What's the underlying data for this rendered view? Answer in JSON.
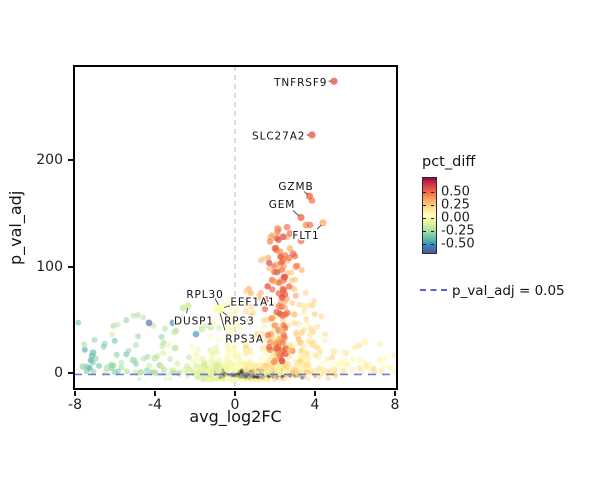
{
  "chart_data": {
    "type": "scatter",
    "title": "",
    "xlabel": "avg_log2FC",
    "ylabel": "p_val_adj",
    "xlim": [
      -8.1,
      8.15
    ],
    "ylim": [
      -16,
      289
    ],
    "grid": false,
    "background": "#ffffff",
    "x_ticks": [
      {
        "v": -8,
        "label": "-8"
      },
      {
        "v": -4,
        "label": "-4"
      },
      {
        "v": 0,
        "label": "0"
      },
      {
        "v": 4,
        "label": "4"
      },
      {
        "v": 8,
        "label": "8"
      }
    ],
    "y_ticks": [
      {
        "v": 0,
        "label": "0"
      },
      {
        "v": 100,
        "label": "100"
      },
      {
        "v": 200,
        "label": "200"
      }
    ],
    "color_variable": "pct_diff",
    "colormap": {
      "name": "spectral-reversed",
      "range": [
        -0.66,
        0.78
      ],
      "stops": [
        "#5e4fa2",
        "#3288bd",
        "#66c2a5",
        "#abdda4",
        "#e6f598",
        "#ffffbf",
        "#fee08b",
        "#fdae61",
        "#f46d43",
        "#d53e4f",
        "#9e0142"
      ]
    },
    "reference_lines": {
      "vertical": {
        "x": 0,
        "style": "dashed",
        "color": "#c3c3c3"
      },
      "horizontal": {
        "y": 0.05,
        "label": "p_val_adj = 0.05",
        "style": "dashed",
        "color": "#5c61d6"
      }
    },
    "labeled_points": [
      {
        "name": "TNFRSF9",
        "x": 4.95,
        "y": 274,
        "pct": 0.55,
        "label_x": 4.62,
        "label_y": 273,
        "anchor": "end",
        "leader": [
          4.68,
          274,
          4.8,
          274
        ]
      },
      {
        "name": "SLC27A2",
        "x": 3.85,
        "y": 223.5,
        "pct": 0.55,
        "label_x": 3.52,
        "label_y": 222.5,
        "anchor": "end",
        "leader": [
          3.58,
          223.5,
          3.7,
          223.5
        ]
      },
      {
        "name": "GZMB",
        "x": 3.72,
        "y": 166,
        "pct": 0.5,
        "label_x": 3.05,
        "label_y": 175,
        "anchor": "middle",
        "leader": [
          3.45,
          170.5,
          3.65,
          167.5
        ]
      },
      {
        "name": "GEM",
        "x": 3.3,
        "y": 146,
        "pct": 0.5,
        "label_x": 2.35,
        "label_y": 158,
        "anchor": "middle",
        "leader": [
          2.9,
          152.5,
          3.2,
          147.5
        ]
      },
      {
        "name": "FLT1",
        "x": 4.4,
        "y": 141,
        "pct": 0.33,
        "label_x": 3.55,
        "label_y": 129,
        "anchor": "middle",
        "leader": [
          4.1,
          135,
          4.32,
          139
        ]
      },
      {
        "name": "RPL30",
        "x": -0.8,
        "y": 62,
        "pct": 0.05,
        "label_x": -1.5,
        "label_y": 73.5,
        "anchor": "middle",
        "leader": [
          -1.0,
          70,
          -0.83,
          64
        ]
      },
      {
        "name": "EEF1A1",
        "x": -0.62,
        "y": 61,
        "pct": 0.06,
        "label_x": 0.9,
        "label_y": 66.5,
        "anchor": "middle",
        "leader": [
          0.02,
          64.5,
          -0.55,
          61.5
        ]
      },
      {
        "name": "DUSP1",
        "x": -2.35,
        "y": 63,
        "pct": -0.13,
        "label_x": -2.05,
        "label_y": 49,
        "anchor": "middle",
        "leader": [
          -2.42,
          56,
          -2.37,
          61
        ]
      },
      {
        "name": "RPS3",
        "x": -0.75,
        "y": 60,
        "pct": 0.03,
        "label_x": 0.22,
        "label_y": 49,
        "anchor": "middle",
        "leader": [
          -0.35,
          53.5,
          -0.7,
          58.5
        ]
      },
      {
        "name": "RPS3A",
        "x": -0.78,
        "y": 58.5,
        "pct": 0.02,
        "label_x": 0.48,
        "label_y": 32,
        "anchor": "middle",
        "leader": [
          -0.5,
          40,
          -0.75,
          56
        ]
      }
    ],
    "notable_points": [
      [
        -4.3,
        47,
        -0.6
      ],
      [
        -3.1,
        47,
        -0.5
      ],
      [
        -1.95,
        36.5,
        -0.48
      ],
      [
        -2.95,
        39.5,
        -0.2
      ],
      [
        -3.0,
        23.5,
        -0.22
      ],
      [
        -7.1,
        19,
        -0.38
      ],
      [
        -7.15,
        16,
        -0.36
      ],
      [
        -5.1,
        12,
        -0.25
      ],
      [
        -2.6,
        61,
        -0.18
      ],
      [
        -1.65,
        41,
        -0.15
      ],
      [
        -7.6,
        6,
        -0.3
      ],
      [
        -6.4,
        5,
        -0.22
      ],
      [
        -4.0,
        14,
        -0.2
      ],
      [
        7.25,
        12,
        0.1
      ],
      [
        6.5,
        29,
        0.12
      ],
      [
        6.25,
        12,
        0.08
      ],
      [
        2.75,
        21,
        0.3
      ],
      [
        4.95,
        20,
        0.18
      ],
      [
        5.6,
        8,
        0.12
      ],
      [
        7.5,
        14,
        0.06
      ],
      [
        5.4,
        12,
        0.08
      ],
      [
        -0.85,
        62.5,
        0.04
      ],
      [
        -0.6,
        60.5,
        0.06
      ],
      [
        -0.95,
        59,
        0.03
      ],
      [
        2.6,
        137,
        0.5
      ],
      [
        2.75,
        131,
        0.52
      ],
      [
        2.4,
        128,
        0.6
      ],
      [
        3.85,
        162,
        0.5
      ],
      [
        3.3,
        124,
        0.55
      ],
      [
        2.9,
        112,
        0.55
      ],
      [
        3.05,
        100,
        0.5
      ],
      [
        2.5,
        90,
        0.58
      ],
      [
        3.55,
        139,
        0.45
      ],
      [
        3.75,
        139,
        0.5
      ]
    ],
    "clusters": [
      {
        "name": "central-cloud",
        "n": 850,
        "x": {
          "dist": "normal",
          "mu": 0.25,
          "sigma": 1.05,
          "min": -3.2,
          "max": 3.6
        },
        "y": {
          "dist": "normal",
          "mu": 0.5,
          "sigma": 4.5,
          "min": -6.5,
          "max": 26
        },
        "pct": {
          "base": 0.02,
          "from_x": 0.085,
          "noise": 0.05,
          "min": -0.5,
          "max": 0.5
        },
        "r": 2.4,
        "alpha": 0.45
      },
      {
        "name": "dense-core",
        "n": 450,
        "x": {
          "dist": "normal",
          "mu": 1.2,
          "sigma": 1.0,
          "min": -1.0,
          "max": 4.0
        },
        "y": {
          "dist": "normal",
          "mu": -0.5,
          "sigma": 1.8,
          "min": -5,
          "max": 3
        },
        "color": "#4a4538",
        "r": 1.6,
        "alpha": 0.3
      },
      {
        "name": "center-plume",
        "n": 120,
        "x": {
          "dist": "normal",
          "mu": -0.12,
          "sigma": 0.22,
          "min": -0.6,
          "max": 0.45
        },
        "y": {
          "dist": "pow",
          "base": 2,
          "range": 66,
          "exp": 1.7
        },
        "pct": {
          "base": 0.05,
          "noise": 0.03,
          "min": -0.05,
          "max": 0.12
        },
        "r": 2.4,
        "alpha": 0.5
      },
      {
        "name": "left-scatter",
        "n": 120,
        "x": {
          "dist": "pow",
          "base": -0.8,
          "range": -7.1,
          "exp": 1.25
        },
        "y": {
          "dist": "pow",
          "base": 0.5,
          "range": 55,
          "exp": 2.4
        },
        "pct": {
          "base": 0,
          "from_x": 0.05,
          "noise": 0.06,
          "min": -0.52,
          "max": 0.08
        },
        "r": 3,
        "alpha": 0.55
      },
      {
        "name": "right-fan",
        "n": 260,
        "x": {
          "dist": "normal",
          "mu": 2.5,
          "sigma": 1.15,
          "min": 0.55,
          "max": 6.2
        },
        "fan": {
          "peak": 148,
          "cx": 2.2,
          "slope": 42,
          "ymin": 3,
          "yexp": 2.1
        },
        "pct": {
          "base": 0.13,
          "from_y": 0.0021,
          "noise": 0.055,
          "min": -0.02,
          "max": 0.52
        },
        "r": 3,
        "alpha": 0.55
      },
      {
        "name": "red-streak",
        "n": 80,
        "x": {
          "dist": "normal",
          "mu": 2.2,
          "sigma": 0.3,
          "min": 1.5,
          "max": 3.0
        },
        "y": {
          "dist": "pow",
          "base": 10,
          "range": 128,
          "exp": 1.25
        },
        "pct": {
          "base": 0.5,
          "noise": 0.07,
          "min": 0.25,
          "max": 0.65
        },
        "r": 3.2,
        "alpha": 0.7
      },
      {
        "name": "right-sparse",
        "n": 45,
        "x": {
          "dist": "pow",
          "base": 3.2,
          "range": 4.9,
          "exp": 1.1
        },
        "y": {
          "dist": "pow",
          "base": 1,
          "range": 30,
          "exp": 2.2
        },
        "pct": {
          "base": 0.14,
          "noise": 0.07,
          "min": 0,
          "max": 0.35
        },
        "r": 3,
        "alpha": 0.5
      },
      {
        "name": "below-line",
        "n": 60,
        "x": {
          "dist": "uniform",
          "base": -5.5,
          "range": 11
        },
        "y": {
          "dist": "uniform",
          "base": -6,
          "range": 7
        },
        "pct": {
          "base": 0.01,
          "from_x": 0.05,
          "noise": 0.05,
          "min": -0.4,
          "max": 0.4
        },
        "r": 2.2,
        "alpha": 0.4
      }
    ]
  },
  "legend": {
    "colorbar_title": "pct_diff",
    "colorbar_ticks": [
      {
        "value": 0.5,
        "label": "0.50"
      },
      {
        "value": 0.25,
        "label": "0.25"
      },
      {
        "value": 0.0,
        "label": "0.00"
      },
      {
        "value": -0.25,
        "label": "-0.25"
      },
      {
        "value": -0.5,
        "label": "-0.50"
      }
    ],
    "line_legend": {
      "label": "p_val_adj = 0.05",
      "color": "#5c61d6",
      "style": "dashed"
    }
  }
}
